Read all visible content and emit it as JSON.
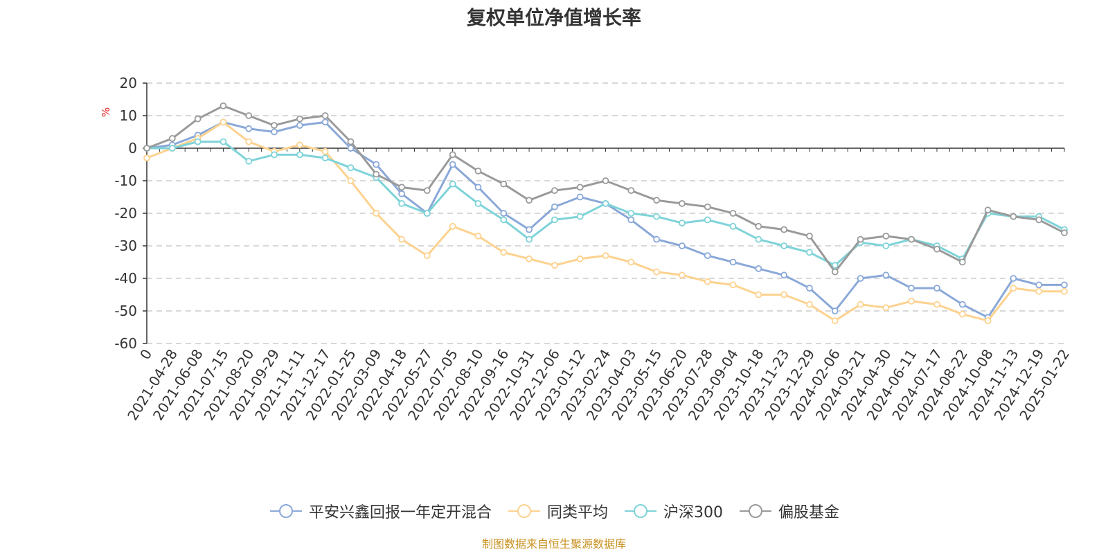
{
  "chart_data": {
    "type": "line",
    "title": "复权单位净值增长率",
    "ylabel": "%",
    "xlabel": "",
    "ylim": [
      -60,
      20
    ],
    "yticks": [
      20,
      10,
      0,
      -10,
      -20,
      -30,
      -40,
      -50,
      -60
    ],
    "grid": true,
    "legend_position": "bottom",
    "categories": [
      "0",
      "2021-04-28",
      "2021-06-08",
      "2021-07-15",
      "2021-08-20",
      "2021-09-29",
      "2021-11-11",
      "2021-12-17",
      "2022-01-25",
      "2022-03-09",
      "2022-04-18",
      "2022-05-27",
      "2022-07-05",
      "2022-08-10",
      "2022-09-16",
      "2022-10-31",
      "2022-12-06",
      "2023-01-12",
      "2023-02-24",
      "2023-04-03",
      "2023-05-15",
      "2023-06-20",
      "2023-07-28",
      "2023-09-04",
      "2023-10-18",
      "2023-11-23",
      "2023-12-29",
      "2024-02-06",
      "2024-03-21",
      "2024-04-30",
      "2024-06-11",
      "2024-07-17",
      "2024-08-22",
      "2024-10-08",
      "2024-11-13",
      "2024-12-19",
      "2025-01-22"
    ],
    "series": [
      {
        "name": "平安兴鑫回报一年定开混合",
        "color": "#8aa8d8",
        "values": [
          0,
          1,
          4,
          8,
          6,
          5,
          7,
          8,
          0,
          -5,
          -14,
          -20,
          -5,
          -12,
          -20,
          -25,
          -18,
          -15,
          -17,
          -22,
          -28,
          -30,
          -33,
          -35,
          -37,
          -39,
          -43,
          -50,
          -40,
          -39,
          -43,
          -43,
          -48,
          -52,
          -40,
          -42,
          -42
        ]
      },
      {
        "name": "同类平均",
        "color": "#fdd28f",
        "values": [
          -3,
          0,
          3,
          8,
          2,
          -1,
          1,
          -1,
          -10,
          -20,
          -28,
          -33,
          -24,
          -27,
          -32,
          -34,
          -36,
          -34,
          -33,
          -35,
          -38,
          -39,
          -41,
          -42,
          -45,
          -45,
          -48,
          -53,
          -48,
          -49,
          -47,
          -48,
          -51,
          -53,
          -43,
          -44,
          -44
        ]
      },
      {
        "name": "沪深300",
        "color": "#7ed3d8",
        "values": [
          0,
          0,
          2,
          2,
          -4,
          -2,
          -2,
          -3,
          -6,
          -9,
          -17,
          -20,
          -11,
          -17,
          -22,
          -28,
          -22,
          -21,
          -17,
          -20,
          -21,
          -23,
          -22,
          -24,
          -28,
          -30,
          -32,
          -36,
          -29,
          -30,
          -28,
          -30,
          -34,
          -20,
          -21,
          -21,
          -25
        ]
      },
      {
        "name": "偏股基金",
        "color": "#9a9a9a",
        "values": [
          0,
          3,
          9,
          13,
          10,
          7,
          9,
          10,
          2,
          -8,
          -12,
          -13,
          -2,
          -7,
          -11,
          -16,
          -13,
          -12,
          -10,
          -13,
          -16,
          -17,
          -18,
          -20,
          -24,
          -25,
          -27,
          -38,
          -28,
          -27,
          -28,
          -31,
          -35,
          -19,
          -21,
          -22,
          -26
        ]
      }
    ],
    "source": "制图数据来自恒生聚源数据库"
  }
}
